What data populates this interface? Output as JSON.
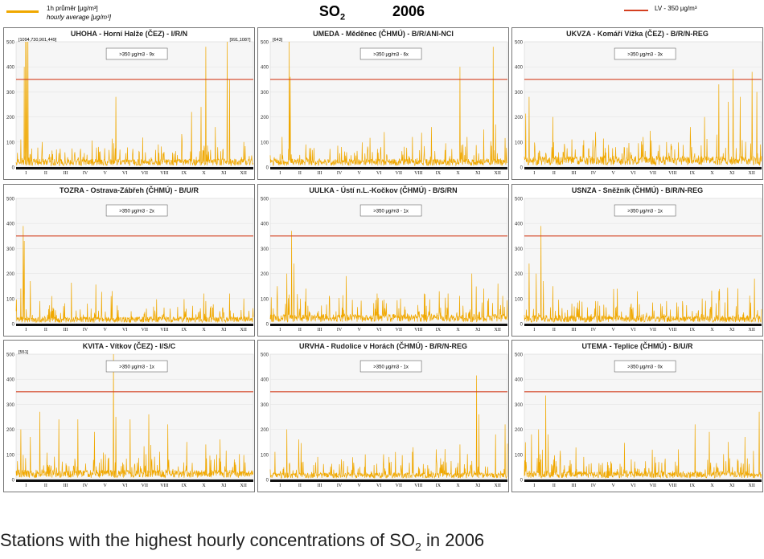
{
  "legend": {
    "series_label": "1h průměr [μg/m³]",
    "series_label_en": "hourly average [μg/m³]",
    "series_color": "#f0a800",
    "limit_label": "LV   - 350 μg/m³",
    "limit_color": "#d44020"
  },
  "header": {
    "pollutant": "SO",
    "pollutant_sub": "2",
    "year": "2006"
  },
  "caption": {
    "text": "Stations with the highest hourly concentrations of SO",
    "sub": "2",
    "tail": " in 2006"
  },
  "chart_data": [
    {
      "type": "line",
      "title": "UHOHA - Horní Halže (ČEZ) - I/R/N",
      "exceedance": ">350 μg/m3 - 9x",
      "ylim": [
        0,
        500
      ],
      "yticks": [
        0,
        100,
        200,
        300,
        400,
        500
      ],
      "limit": 350,
      "months": [
        "I",
        "II",
        "III",
        "IV",
        "V",
        "VI",
        "VII",
        "VIII",
        "IX",
        "X",
        "XI",
        "XII"
      ],
      "peaks_label": [
        "[1094,730,901,449]",
        "[991,1087]"
      ],
      "baseline": 30,
      "peaks": [
        [
          0.02,
          110
        ],
        [
          0.035,
          400
        ],
        [
          0.04,
          500
        ],
        [
          0.045,
          500
        ],
        [
          0.05,
          500
        ],
        [
          0.11,
          100
        ],
        [
          0.17,
          70
        ],
        [
          0.27,
          60
        ],
        [
          0.35,
          60
        ],
        [
          0.42,
          280
        ],
        [
          0.52,
          60
        ],
        [
          0.6,
          90
        ],
        [
          0.7,
          110
        ],
        [
          0.74,
          220
        ],
        [
          0.78,
          240
        ],
        [
          0.8,
          480
        ],
        [
          0.84,
          160
        ],
        [
          0.89,
          500
        ],
        [
          0.9,
          350
        ],
        [
          0.96,
          100
        ]
      ]
    },
    {
      "type": "line",
      "title": "UMEDA - Měděnec (ČHMÚ) - B/R/ANI-NCI",
      "exceedance": ">350 μg/m3 - 6x",
      "ylim": [
        0,
        500
      ],
      "yticks": [
        0,
        100,
        200,
        300,
        400,
        500
      ],
      "limit": 350,
      "months": [
        "I",
        "II",
        "III",
        "IV",
        "V",
        "VI",
        "VII",
        "VIII",
        "IX",
        "X",
        "XI",
        "XII"
      ],
      "peaks_label": [
        "[643]"
      ],
      "baseline": 30,
      "peaks": [
        [
          0.05,
          120
        ],
        [
          0.08,
          500
        ],
        [
          0.085,
          360
        ],
        [
          0.15,
          90
        ],
        [
          0.3,
          80
        ],
        [
          0.42,
          100
        ],
        [
          0.48,
          140
        ],
        [
          0.6,
          120
        ],
        [
          0.68,
          160
        ],
        [
          0.8,
          400
        ],
        [
          0.83,
          120
        ],
        [
          0.9,
          150
        ],
        [
          0.94,
          480
        ],
        [
          0.95,
          170
        ]
      ]
    },
    {
      "type": "line",
      "title": "UKVZA - Komáří Vížka (ČEZ) - B/R/N-REG",
      "exceedance": ">350 μg/m3 - 3x",
      "ylim": [
        0,
        500
      ],
      "yticks": [
        0,
        100,
        200,
        300,
        400,
        500
      ],
      "limit": 350,
      "months": [
        "I",
        "II",
        "III",
        "IV",
        "V",
        "VI",
        "VII",
        "VIII",
        "IX",
        "X",
        "XI",
        "XII"
      ],
      "peaks_label": [],
      "baseline": 40,
      "peaks": [
        [
          0.02,
          280
        ],
        [
          0.12,
          200
        ],
        [
          0.2,
          110
        ],
        [
          0.3,
          140
        ],
        [
          0.42,
          80
        ],
        [
          0.5,
          120
        ],
        [
          0.6,
          100
        ],
        [
          0.7,
          160
        ],
        [
          0.76,
          200
        ],
        [
          0.82,
          330
        ],
        [
          0.86,
          260
        ],
        [
          0.88,
          390
        ],
        [
          0.91,
          280
        ],
        [
          0.96,
          380
        ],
        [
          0.98,
          300
        ]
      ]
    },
    {
      "type": "line",
      "title": "TOZRA - Ostrava-Zábřeh (ČHMÚ) - B/U/R",
      "exceedance": ">350 μg/m3 - 2x",
      "ylim": [
        0,
        500
      ],
      "yticks": [
        0,
        100,
        200,
        300,
        400,
        500
      ],
      "limit": 350,
      "months": [
        "I",
        "II",
        "III",
        "IV",
        "V",
        "VI",
        "VII",
        "VIII",
        "IX",
        "X",
        "XI",
        "XII"
      ],
      "peaks_label": [],
      "baseline": 25,
      "peaks": [
        [
          0.02,
          140
        ],
        [
          0.03,
          390
        ],
        [
          0.035,
          330
        ],
        [
          0.06,
          170
        ],
        [
          0.1,
          90
        ],
        [
          0.15,
          110
        ],
        [
          0.2,
          70
        ],
        [
          0.3,
          80
        ],
        [
          0.4,
          110
        ],
        [
          0.55,
          60
        ],
        [
          0.65,
          60
        ],
        [
          0.8,
          90
        ],
        [
          0.9,
          120
        ],
        [
          0.96,
          100
        ]
      ]
    },
    {
      "type": "line",
      "title": "UULKA - Ústí n.L.-Kočkov (ČHMÚ) - B/S/RN",
      "exceedance": ">350 μg/m3 - 1x",
      "ylim": [
        0,
        500
      ],
      "yticks": [
        0,
        100,
        200,
        300,
        400,
        500
      ],
      "limit": 350,
      "months": [
        "I",
        "II",
        "III",
        "IV",
        "V",
        "VI",
        "VII",
        "VIII",
        "IX",
        "X",
        "XI",
        "XII"
      ],
      "peaks_label": [],
      "baseline": 35,
      "peaks": [
        [
          0.03,
          150
        ],
        [
          0.07,
          200
        ],
        [
          0.09,
          370
        ],
        [
          0.1,
          240
        ],
        [
          0.15,
          140
        ],
        [
          0.25,
          100
        ],
        [
          0.32,
          190
        ],
        [
          0.45,
          120
        ],
        [
          0.55,
          100
        ],
        [
          0.65,
          120
        ],
        [
          0.75,
          120
        ],
        [
          0.85,
          200
        ],
        [
          0.9,
          140
        ],
        [
          0.96,
          160
        ]
      ]
    },
    {
      "type": "line",
      "title": "USNZA - Sněžník (ČHMÚ) - B/R/N-REG",
      "exceedance": ">350 μg/m3 - 1x",
      "ylim": [
        0,
        500
      ],
      "yticks": [
        0,
        100,
        200,
        300,
        400,
        500
      ],
      "limit": 350,
      "months": [
        "I",
        "II",
        "III",
        "IV",
        "V",
        "VI",
        "VII",
        "VIII",
        "IX",
        "X",
        "XI",
        "XII"
      ],
      "peaks_label": [],
      "baseline": 30,
      "peaks": [
        [
          0.02,
          240
        ],
        [
          0.05,
          200
        ],
        [
          0.07,
          390
        ],
        [
          0.08,
          170
        ],
        [
          0.12,
          150
        ],
        [
          0.2,
          80
        ],
        [
          0.3,
          90
        ],
        [
          0.45,
          80
        ],
        [
          0.6,
          90
        ],
        [
          0.75,
          100
        ],
        [
          0.82,
          130
        ],
        [
          0.9,
          140
        ],
        [
          0.97,
          180
        ]
      ]
    },
    {
      "type": "line",
      "title": "KVITA - Vítkov (ČEZ) - I/S/C",
      "exceedance": ">350 μg/m3 - 1x",
      "ylim": [
        0,
        500
      ],
      "yticks": [
        0,
        100,
        200,
        300,
        400,
        500
      ],
      "limit": 350,
      "months": [
        "I",
        "II",
        "III",
        "IV",
        "V",
        "VI",
        "VII",
        "VIII",
        "IX",
        "X",
        "XI",
        "XII"
      ],
      "peaks_label": [
        "[551]"
      ],
      "baseline": 35,
      "peaks": [
        [
          0.02,
          200
        ],
        [
          0.06,
          170
        ],
        [
          0.1,
          270
        ],
        [
          0.18,
          240
        ],
        [
          0.26,
          240
        ],
        [
          0.33,
          190
        ],
        [
          0.41,
          500
        ],
        [
          0.42,
          250
        ],
        [
          0.48,
          240
        ],
        [
          0.56,
          260
        ],
        [
          0.64,
          220
        ],
        [
          0.72,
          150
        ],
        [
          0.8,
          140
        ],
        [
          0.86,
          160
        ],
        [
          0.92,
          80
        ]
      ]
    },
    {
      "type": "line",
      "title": "URVHA - Rudolice v Horách (ČHMÚ) - B/R/N-REG",
      "exceedance": ">350 μg/m3 - 1x",
      "ylim": [
        0,
        500
      ],
      "yticks": [
        0,
        100,
        200,
        300,
        400,
        500
      ],
      "limit": 350,
      "months": [
        "I",
        "II",
        "III",
        "IV",
        "V",
        "VI",
        "VII",
        "VIII",
        "IX",
        "X",
        "XI",
        "XII"
      ],
      "peaks_label": [],
      "baseline": 25,
      "peaks": [
        [
          0.02,
          110
        ],
        [
          0.07,
          200
        ],
        [
          0.12,
          160
        ],
        [
          0.2,
          90
        ],
        [
          0.3,
          80
        ],
        [
          0.4,
          100
        ],
        [
          0.5,
          90
        ],
        [
          0.6,
          110
        ],
        [
          0.7,
          120
        ],
        [
          0.8,
          140
        ],
        [
          0.87,
          415
        ],
        [
          0.88,
          260
        ],
        [
          0.95,
          180
        ],
        [
          0.99,
          220
        ]
      ]
    },
    {
      "type": "line",
      "title": "UTEMA - Teplice (ČHMÚ) - B/U/R",
      "exceedance": ">350 μg/m3 - 0x",
      "ylim": [
        0,
        500
      ],
      "yticks": [
        0,
        100,
        200,
        300,
        400,
        500
      ],
      "limit": 350,
      "months": [
        "I",
        "II",
        "III",
        "IV",
        "V",
        "VI",
        "VII",
        "VIII",
        "IX",
        "X",
        "XI",
        "XII"
      ],
      "peaks_label": [],
      "baseline": 30,
      "peaks": [
        [
          0.03,
          180
        ],
        [
          0.06,
          200
        ],
        [
          0.09,
          335
        ],
        [
          0.1,
          180
        ],
        [
          0.15,
          90
        ],
        [
          0.25,
          90
        ],
        [
          0.35,
          70
        ],
        [
          0.45,
          80
        ],
        [
          0.55,
          90
        ],
        [
          0.65,
          120
        ],
        [
          0.72,
          220
        ],
        [
          0.78,
          190
        ],
        [
          0.86,
          150
        ],
        [
          0.93,
          170
        ],
        [
          0.99,
          270
        ]
      ]
    }
  ]
}
